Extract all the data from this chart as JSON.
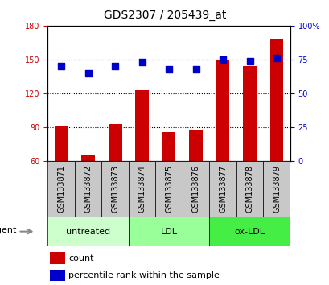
{
  "title": "GDS2307 / 205439_at",
  "categories": [
    "GSM133871",
    "GSM133872",
    "GSM133873",
    "GSM133874",
    "GSM133875",
    "GSM133876",
    "GSM133877",
    "GSM133878",
    "GSM133879"
  ],
  "bar_values": [
    91,
    65,
    93,
    123,
    86,
    87,
    150,
    144,
    168
  ],
  "scatter_values": [
    70,
    65,
    70,
    73,
    68,
    68,
    75,
    74,
    76
  ],
  "ylim_left": [
    60,
    180
  ],
  "ylim_right": [
    0,
    100
  ],
  "yticks_left": [
    60,
    90,
    120,
    150,
    180
  ],
  "yticks_right": [
    0,
    25,
    50,
    75,
    100
  ],
  "ytick_labels_right": [
    "0",
    "25",
    "50",
    "75",
    "100%"
  ],
  "bar_color": "#cc0000",
  "scatter_color": "#0000cc",
  "groups": [
    {
      "label": "untreated",
      "start": 0,
      "end": 3,
      "color": "#ccffcc"
    },
    {
      "label": "LDL",
      "start": 3,
      "end": 6,
      "color": "#99ff99"
    },
    {
      "label": "ox-LDL",
      "start": 6,
      "end": 9,
      "color": "#44ee44"
    }
  ],
  "xlabel_area_color": "#c8c8c8",
  "agent_label": "agent",
  "legend_count_label": "count",
  "legend_pct_label": "percentile rank within the sample",
  "bg_color": "#ffffff",
  "dotted_lines": [
    90,
    120,
    150
  ],
  "bar_width": 0.5,
  "scatter_size": 28,
  "title_fontsize": 10,
  "axis_fontsize": 8,
  "tick_fontsize": 7,
  "legend_fontsize": 8
}
